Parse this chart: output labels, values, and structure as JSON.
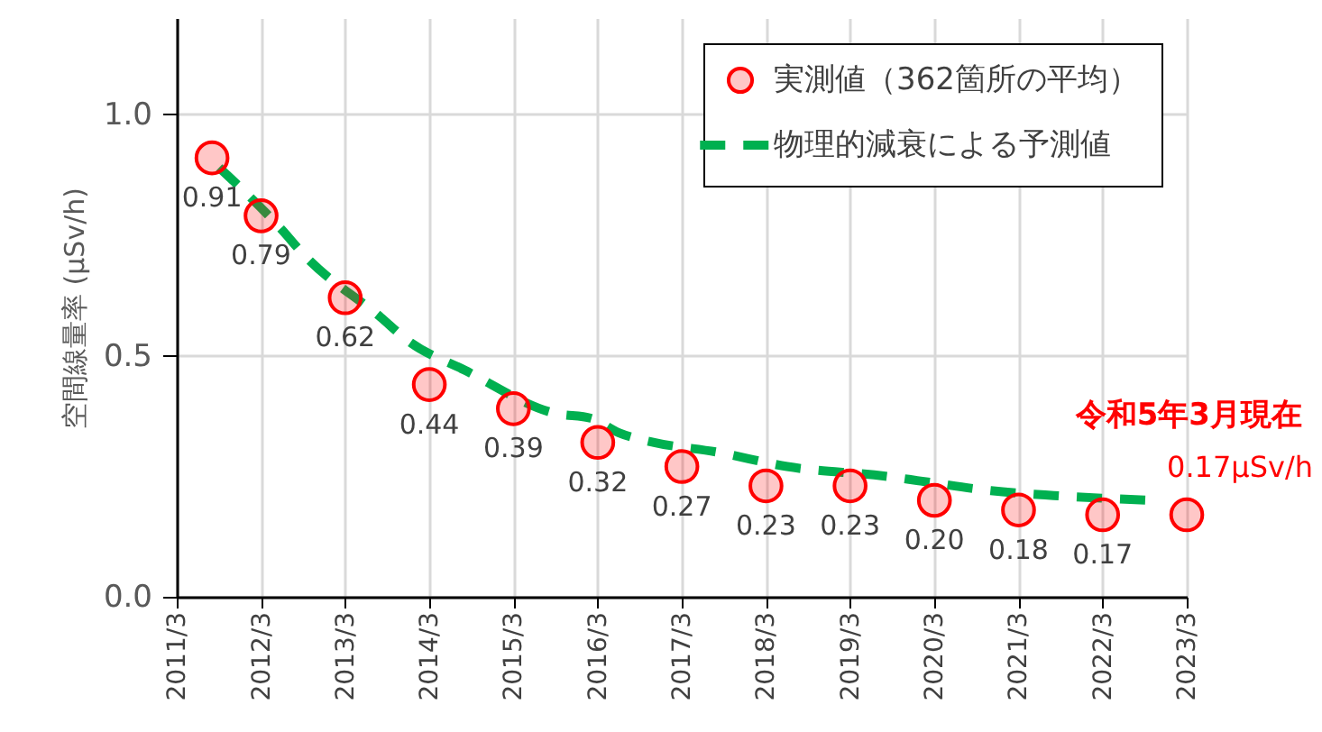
{
  "chart_data": {
    "type": "scatter",
    "ylabel": "空間線量率 (μSv/h)",
    "x": [
      "2011-08",
      "2012-03",
      "2013-03",
      "2014-03",
      "2015-03",
      "2016-03",
      "2017-03",
      "2018-03",
      "2019-03",
      "2020-03",
      "2021-03",
      "2022-03",
      "2023-03"
    ],
    "xlim": [
      "2011-03",
      "2023-03"
    ],
    "xticks": [
      {
        "value": "2011-03",
        "label": "2011/3"
      },
      {
        "value": "2012-03",
        "label": "2012/3"
      },
      {
        "value": "2013-03",
        "label": "2013/3"
      },
      {
        "value": "2014-03",
        "label": "2014/3"
      },
      {
        "value": "2015-03",
        "label": "2015/3"
      },
      {
        "value": "2016-03",
        "label": "2016/3"
      },
      {
        "value": "2017-03",
        "label": "2017/3"
      },
      {
        "value": "2018-03",
        "label": "2018/3"
      },
      {
        "value": "2019-03",
        "label": "2019/3"
      },
      {
        "value": "2020-03",
        "label": "2020/3"
      },
      {
        "value": "2021-03",
        "label": "2021/3"
      },
      {
        "value": "2022-03",
        "label": "2022/3"
      },
      {
        "value": "2023-03",
        "label": "2023/3"
      }
    ],
    "ylim": [
      0,
      1.2
    ],
    "yticks": [
      {
        "value": 0,
        "label": "0.0"
      },
      0.5,
      {
        "value": 1,
        "label": "1.0"
      }
    ],
    "grid": true,
    "legend": "top right",
    "marker": "circle",
    "series": [
      {
        "name": "実測値（362箇所の平均）",
        "color": "#ff0000",
        "values": [
          0.91,
          0.79,
          0.62,
          0.44,
          0.39,
          0.32,
          0.27,
          0.23,
          0.23,
          0.2,
          0.18,
          0.17,
          0.17
        ],
        "value_labels": [
          "0.91",
          "0.79",
          "0.62",
          "0.44",
          "0.39",
          "0.32",
          "0.27",
          "0.23",
          "0.23",
          "0.20",
          "0.18",
          "0.17",
          null
        ]
      },
      {
        "name": "物理的減衰による予測値",
        "type": "line",
        "color": "#00b050",
        "line_style": "dashed",
        "marker": "none",
        "x": [
          "2011-09",
          "2012-06",
          "2012-09",
          "2013-08",
          "2013-12",
          "2014-08",
          "2015-09",
          "2016-02",
          "2016-06",
          "2016-11",
          "2017-08",
          "2018-06",
          "2019-08",
          "2020-01",
          "2020-11",
          "2021-08",
          "2022-10"
        ],
        "values": [
          0.89,
          0.76,
          0.71,
          0.58,
          0.53,
          0.47,
          0.38,
          0.37,
          0.34,
          0.32,
          0.3,
          0.27,
          0.25,
          0.24,
          0.22,
          0.21,
          0.2
        ]
      }
    ],
    "annotations": [
      {
        "text": "令和5年3月現在",
        "x": "2023-03",
        "y": 0.17
      },
      {
        "text": "0.17μSv/h",
        "x": "2023-03",
        "y": 0.17
      }
    ]
  }
}
